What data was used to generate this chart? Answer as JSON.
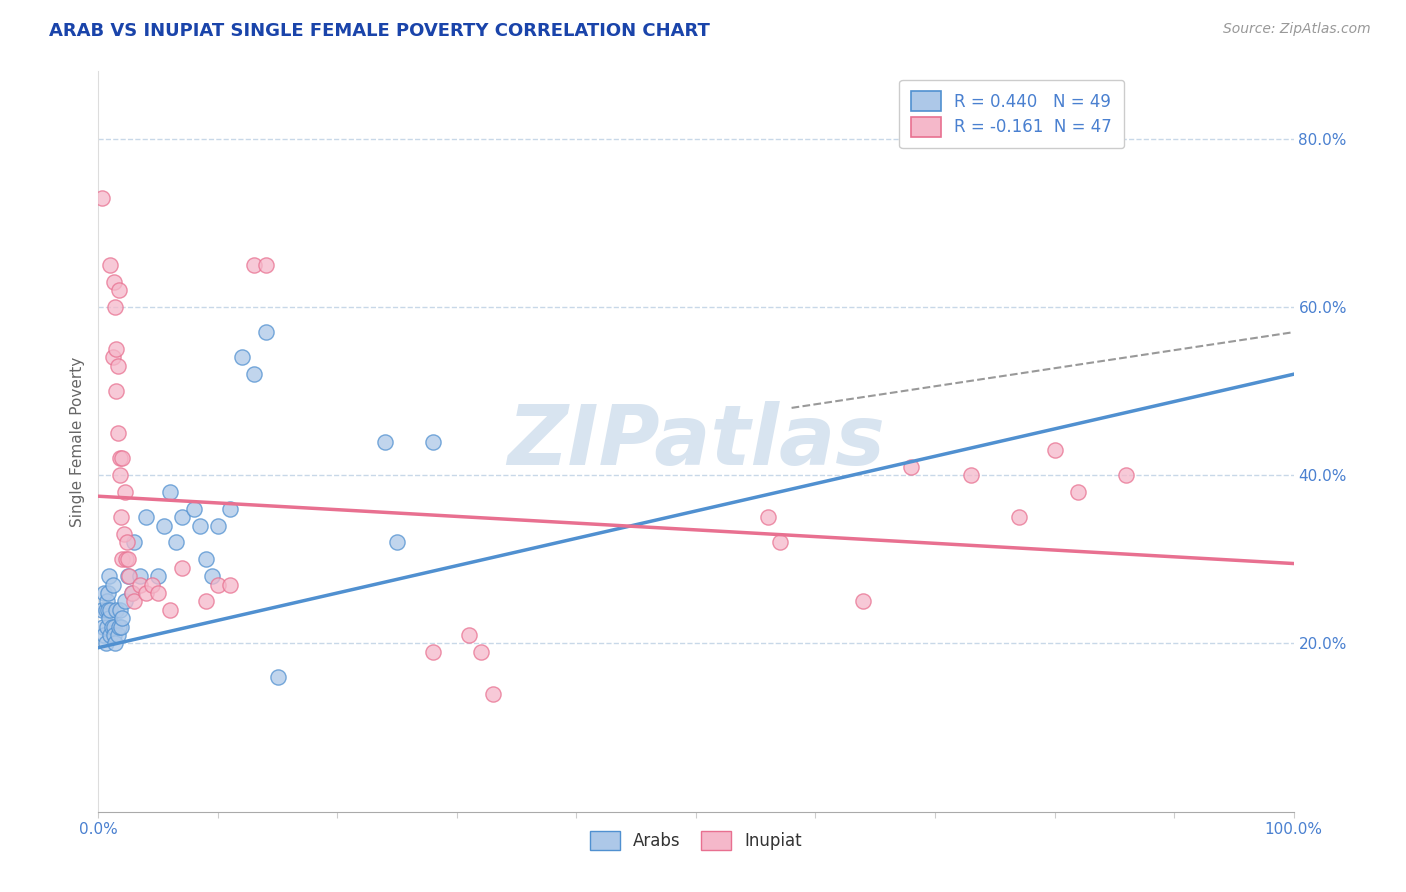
{
  "title": "ARAB VS INUPIAT SINGLE FEMALE POVERTY CORRELATION CHART",
  "source_text": "Source: ZipAtlas.com",
  "ylabel": "Single Female Poverty",
  "xlim": [
    0.0,
    1.0
  ],
  "ylim": [
    0.0,
    0.88
  ],
  "xticks": [
    0.0,
    0.1,
    0.2,
    0.3,
    0.4,
    0.5,
    0.6,
    0.7,
    0.8,
    0.9,
    1.0
  ],
  "xticklabels": [
    "0.0%",
    "",
    "",
    "",
    "",
    "",
    "",
    "",
    "",
    "",
    "100.0%"
  ],
  "yticks": [
    0.0,
    0.2,
    0.4,
    0.6,
    0.8
  ],
  "yticklabels": [
    "",
    "20.0%",
    "40.0%",
    "60.0%",
    "80.0%"
  ],
  "legend_r1": "R = 0.440   N = 49",
  "legend_r2": "R = -0.161  N = 47",
  "arab_color": "#adc8e8",
  "inupiat_color": "#f5b8ca",
  "arab_line_color": "#5090d0",
  "inupiat_line_color": "#e87090",
  "background_color": "#ffffff",
  "grid_color": "#c8d8e8",
  "watermark_color": "#d8e4f0",
  "title_color": "#1a44aa",
  "axis_color": "#4a80d0",
  "arab_scatter": [
    [
      0.003,
      0.24
    ],
    [
      0.004,
      0.22
    ],
    [
      0.005,
      0.21
    ],
    [
      0.005,
      0.26
    ],
    [
      0.006,
      0.24
    ],
    [
      0.006,
      0.2
    ],
    [
      0.007,
      0.25
    ],
    [
      0.007,
      0.22
    ],
    [
      0.008,
      0.26
    ],
    [
      0.008,
      0.24
    ],
    [
      0.009,
      0.28
    ],
    [
      0.009,
      0.23
    ],
    [
      0.01,
      0.21
    ],
    [
      0.01,
      0.24
    ],
    [
      0.011,
      0.22
    ],
    [
      0.012,
      0.27
    ],
    [
      0.013,
      0.22
    ],
    [
      0.013,
      0.21
    ],
    [
      0.014,
      0.2
    ],
    [
      0.015,
      0.24
    ],
    [
      0.016,
      0.21
    ],
    [
      0.017,
      0.22
    ],
    [
      0.018,
      0.24
    ],
    [
      0.019,
      0.22
    ],
    [
      0.02,
      0.23
    ],
    [
      0.022,
      0.25
    ],
    [
      0.025,
      0.28
    ],
    [
      0.028,
      0.26
    ],
    [
      0.03,
      0.32
    ],
    [
      0.035,
      0.28
    ],
    [
      0.04,
      0.35
    ],
    [
      0.05,
      0.28
    ],
    [
      0.055,
      0.34
    ],
    [
      0.06,
      0.38
    ],
    [
      0.065,
      0.32
    ],
    [
      0.07,
      0.35
    ],
    [
      0.08,
      0.36
    ],
    [
      0.085,
      0.34
    ],
    [
      0.09,
      0.3
    ],
    [
      0.095,
      0.28
    ],
    [
      0.1,
      0.34
    ],
    [
      0.11,
      0.36
    ],
    [
      0.12,
      0.54
    ],
    [
      0.13,
      0.52
    ],
    [
      0.14,
      0.57
    ],
    [
      0.15,
      0.16
    ],
    [
      0.24,
      0.44
    ],
    [
      0.25,
      0.32
    ],
    [
      0.28,
      0.44
    ]
  ],
  "inupiat_scatter": [
    [
      0.003,
      0.73
    ],
    [
      0.01,
      0.65
    ],
    [
      0.012,
      0.54
    ],
    [
      0.013,
      0.63
    ],
    [
      0.014,
      0.6
    ],
    [
      0.015,
      0.55
    ],
    [
      0.015,
      0.5
    ],
    [
      0.016,
      0.53
    ],
    [
      0.016,
      0.45
    ],
    [
      0.017,
      0.62
    ],
    [
      0.018,
      0.42
    ],
    [
      0.018,
      0.4
    ],
    [
      0.019,
      0.35
    ],
    [
      0.02,
      0.42
    ],
    [
      0.02,
      0.3
    ],
    [
      0.021,
      0.33
    ],
    [
      0.022,
      0.38
    ],
    [
      0.023,
      0.3
    ],
    [
      0.024,
      0.32
    ],
    [
      0.025,
      0.3
    ],
    [
      0.026,
      0.28
    ],
    [
      0.028,
      0.26
    ],
    [
      0.03,
      0.25
    ],
    [
      0.035,
      0.27
    ],
    [
      0.04,
      0.26
    ],
    [
      0.045,
      0.27
    ],
    [
      0.05,
      0.26
    ],
    [
      0.06,
      0.24
    ],
    [
      0.07,
      0.29
    ],
    [
      0.09,
      0.25
    ],
    [
      0.1,
      0.27
    ],
    [
      0.11,
      0.27
    ],
    [
      0.13,
      0.65
    ],
    [
      0.14,
      0.65
    ],
    [
      0.28,
      0.19
    ],
    [
      0.31,
      0.21
    ],
    [
      0.32,
      0.19
    ],
    [
      0.33,
      0.14
    ],
    [
      0.56,
      0.35
    ],
    [
      0.57,
      0.32
    ],
    [
      0.64,
      0.25
    ],
    [
      0.68,
      0.41
    ],
    [
      0.73,
      0.4
    ],
    [
      0.77,
      0.35
    ],
    [
      0.8,
      0.43
    ],
    [
      0.82,
      0.38
    ],
    [
      0.86,
      0.4
    ]
  ],
  "arab_trendline": [
    0.0,
    1.0,
    0.195,
    0.52
  ],
  "inupiat_trendline": [
    0.0,
    1.0,
    0.375,
    0.295
  ],
  "dashed_extension": [
    0.58,
    1.0,
    0.48,
    0.57
  ]
}
